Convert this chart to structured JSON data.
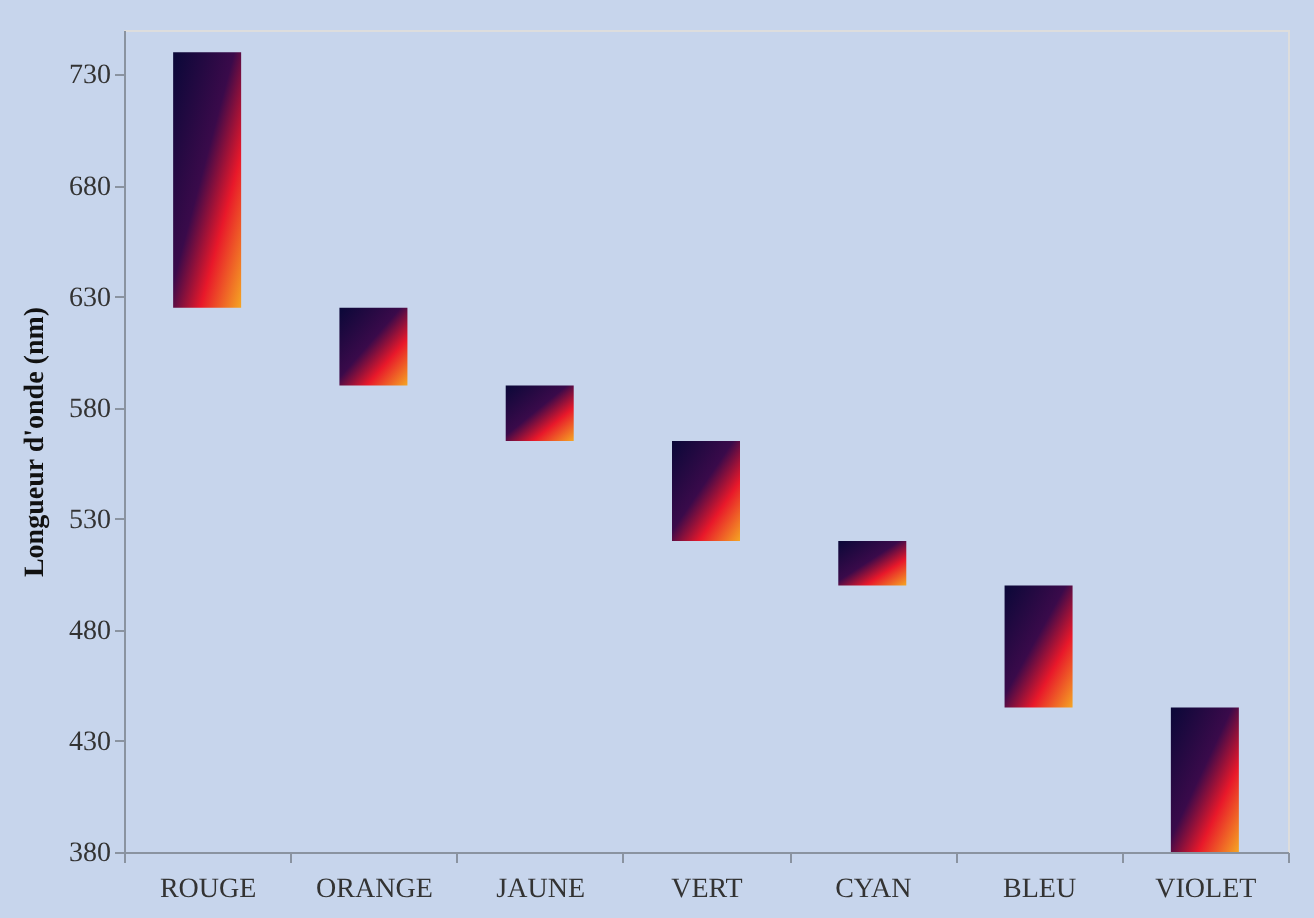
{
  "chart_data": {
    "type": "bar",
    "ylabel": "Longueur d'onde (nm)",
    "categories": [
      "ROUGE",
      "ORANGE",
      "JAUNE",
      "VERT",
      "CYAN",
      "BLEU",
      "VIOLET"
    ],
    "base": [
      625,
      590,
      565,
      520,
      500,
      445,
      380
    ],
    "values": [
      115,
      35,
      25,
      45,
      20,
      55,
      65
    ],
    "color": "#e8182a",
    "ylim": [
      380,
      750
    ],
    "yticks": [
      380,
      430,
      480,
      530,
      580,
      630,
      680,
      730
    ],
    "grid": false
  }
}
